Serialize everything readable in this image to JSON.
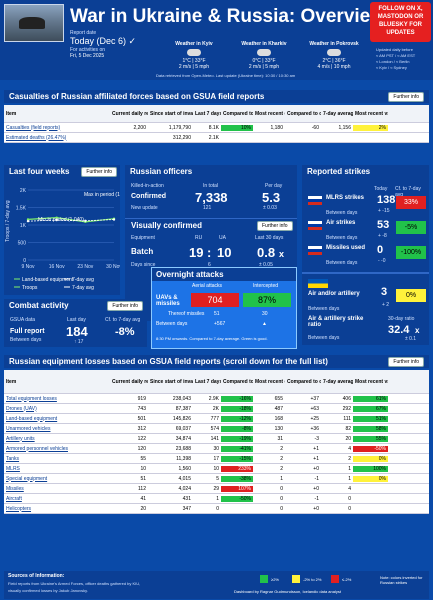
{
  "header": {
    "title": "War in Ukraine & Russia: Overview",
    "report_label": "Report date",
    "today": "Today (Dec 6)",
    "check": "✓",
    "activities": "For activities on",
    "date": "Fri, 5 Dec 2025",
    "follow": "FOLLOW ON X, MASTODON OR BLUESKY FOR UPDATES",
    "updated": "Updated daily before",
    "updated2": "≈ AM PST / ≈ AM EST",
    "updated3": "≈ London / ≈ Berlin",
    "updated4": "≈ Kyiv / ≈ Sydney",
    "weather": [
      {
        "city": "Weather in Kyiv",
        "temp": "1°C | 33°F",
        "wind": "2 m/s | 5 mph",
        "icon": "cloud-icon"
      },
      {
        "city": "Weather in Kharkiv",
        "temp": "0°C | 33°F",
        "wind": "2 m/s | 5 mph",
        "icon": "cloud-icon"
      },
      {
        "city": "Weather in Pokrovsk",
        "temp": "2°C | 36°F",
        "wind": "4 m/s | 10 mph",
        "icon": "cloud-icon"
      }
    ],
    "retrieved": "Data retrieved from Open-Meteo. Last update (Ukraine time): 10:30 / 10:30 am"
  },
  "casualties": {
    "title": "Casualties of Russian affiliated forces based on GSUA field reports",
    "button": "Further info",
    "headers": [
      "Item",
      "Current daily record",
      "Since start of invasion",
      "Last 7 days",
      "Compared to previous 7 days",
      "Most recent day",
      "Compared to day before",
      "7-day average",
      "Most recent vs 7-day average"
    ],
    "rows": [
      [
        "Casualties (field reports)",
        "2,200",
        "1,179,790",
        "8.1K",
        "10%",
        "1,180",
        "-60",
        "1,156",
        "2%"
      ],
      [
        "Estimated deaths (26.47%)",
        "",
        "312,290",
        "2.1K",
        "",
        "",
        "",
        "",
        ""
      ]
    ]
  },
  "weeks": {
    "title": "Last four weeks",
    "button": "Further info",
    "ylabel": "Troops / 7-day avg",
    "labels": [
      "Max in period (1,270)",
      "Min in period (1,040)"
    ],
    "legend": [
      "Land-based equipment",
      "7-day avg",
      "Troops",
      "7-day avg"
    ],
    "x_ticks": [
      "9 Nov",
      "16 Nov",
      "23 Nov",
      "30 Nov"
    ],
    "y_ticks": [
      "2K",
      "1.5K",
      "1K",
      "500",
      "0"
    ]
  },
  "chart_data": {
    "type": "line",
    "x": [
      "9 Nov",
      "16 Nov",
      "23 Nov",
      "30 Nov"
    ],
    "series": [
      {
        "name": "Troops",
        "values": [
          1160,
          1210,
          1090,
          1180
        ]
      },
      {
        "name": "7-day avg",
        "values": [
          1110,
          1140,
          1120,
          1156
        ]
      }
    ],
    "ylim": [
      0,
      2000
    ]
  },
  "officers": {
    "title": "Russian officers",
    "killed": "Killed-in-action",
    "in_total": "In total",
    "per_day": "Per day",
    "confirmed": "Confirmed",
    "confirmed_total": "7,338",
    "confirmed_day": "5.3",
    "new_update": "New update",
    "new_total": "121",
    "new_day": "± 0.03",
    "visually": "Visually confirmed",
    "button": "Further info",
    "equipment": "Equipment",
    "ru": "RU",
    "ua": "UA",
    "last30": "Last 30 days",
    "batch": "Batch",
    "batch_ru": "19",
    "batch_sep": ":",
    "batch_ua": "10",
    "batch_ratio": "0.8",
    "batch_x": "x",
    "days_since": "Days since",
    "days_val": "6",
    "days_ratio": "± 0.05"
  },
  "strikes": {
    "title": "Reported strikes",
    "today": "Today",
    "cf": "Cf. to 7-day avg",
    "rows": [
      {
        "label": "MLRS strikes",
        "sub": "Between days",
        "val": "138",
        "delta": "+ -15",
        "cf": "33%",
        "cls": "red"
      },
      {
        "label": "Air strikes",
        "sub": "Between days",
        "val": "53",
        "delta": "+ -8",
        "cf": "-5%",
        "cls": "green"
      },
      {
        "label": "Missiles used",
        "sub": "Between days",
        "val": "0",
        "delta": "- -0",
        "cf": "-100%",
        "cls": "green"
      }
    ],
    "ua_title": "Air and/or artillery",
    "ua_sub": "Between days",
    "ua_val": "3",
    "ua_delta": "+ 2",
    "ua_cf": "0%",
    "ua_strike": "Air & artillery strike ratio",
    "ua_sub2": "Between days",
    "ratio_title": "30-day ratio",
    "ratio": "32.4",
    "ratio_x": "x",
    "ratio_pm": "± 0.1"
  },
  "overnight": {
    "title": "Overnight attacks",
    "col1": "Aerial attacks",
    "col2": "Intercepted",
    "uav": "UAVs & missiles",
    "attacks": "704",
    "intercepted": "87%",
    "thereof": "Thereof missiles",
    "thereof_a": "51",
    "thereof_b": "30",
    "between": "Between days",
    "between_a": "+567",
    "between_b": "▲",
    "note": "8:30 PM onwards. Compared to 7-day average. Green is good."
  },
  "combat": {
    "title": "Combat activity",
    "button": "Further info",
    "gsua": "GSUA data",
    "last": "Last day",
    "cf": "Cf. to 7-day avg",
    "full": "Full report",
    "full_sub": "Between days",
    "val": "184",
    "delta": "↑ 17",
    "cf_val": "-8%"
  },
  "equipment": {
    "title": "Russian equipment losses based on GSUA field reports (scroll down for the full list)",
    "button": "Further info",
    "headers": [
      "Item",
      "Current daily record",
      "Since start of invasion",
      "Last 7 days",
      "Compared to previous 7 days",
      "Most recent day",
      "Compared to day before",
      "7-day average",
      "Most recent vs 7-day average"
    ],
    "rows": [
      [
        "Total equipment losses",
        "919",
        "238,043",
        "2.9K",
        "-16%",
        "655",
        "+37",
        "406",
        "61%"
      ],
      [
        "Drones (UAV)",
        "743",
        "87,387",
        "2K",
        "-18%",
        "487",
        "+63",
        "292",
        "67%"
      ],
      [
        "Land-based equipment",
        "501",
        "145,826",
        "777",
        "-12%",
        "168",
        "+25",
        "111",
        "51%"
      ],
      [
        "Unarmored vehicles",
        "312",
        "69,037",
        "574",
        "-8%",
        "130",
        "+36",
        "82",
        "58%"
      ],
      [
        "Artillery units",
        "122",
        "34,874",
        "141",
        "-19%",
        "31",
        "-3",
        "20",
        "55%"
      ],
      [
        "Armored personnel vehicles",
        "120",
        "23,688",
        "30",
        "-41%",
        "2",
        "+1",
        "4",
        "-50%"
      ],
      [
        "Tanks",
        "55",
        "11,398",
        "17",
        "-15%",
        "2",
        "+1",
        "2",
        "0%"
      ],
      [
        "MLRS",
        "10",
        "1,560",
        "10",
        "233%",
        "2",
        "+0",
        "1",
        "100%"
      ],
      [
        "Special equipment",
        "51",
        "4,015",
        "5",
        "-38%",
        "1",
        "-1",
        "1",
        "0%"
      ],
      [
        "Missiles",
        "112",
        "4,024",
        "29",
        "107%",
        "0",
        "+0",
        "4",
        ""
      ],
      [
        "Aircraft",
        "41",
        "431",
        "1",
        "-50%",
        "0",
        "-1",
        "0",
        ""
      ],
      [
        "Helicopters",
        "20",
        "347",
        "0",
        "",
        "0",
        "+0",
        "0",
        ""
      ]
    ]
  },
  "footer": {
    "sources": "Sources of Information:",
    "line1": "Field reports from Ukraine's Armed Forces, officer deaths gathered by KIU,",
    "line2": "visually confirmed losses by Jakub Janovsky.",
    "dashboard": "Dashboard by Ragnar Gudmundsson, Icelandic data analyst",
    "legend": [
      "≥2%",
      "-2% to 2%",
      "≤-2%"
    ],
    "note": "Note: colors inverted for Russian strikes"
  }
}
